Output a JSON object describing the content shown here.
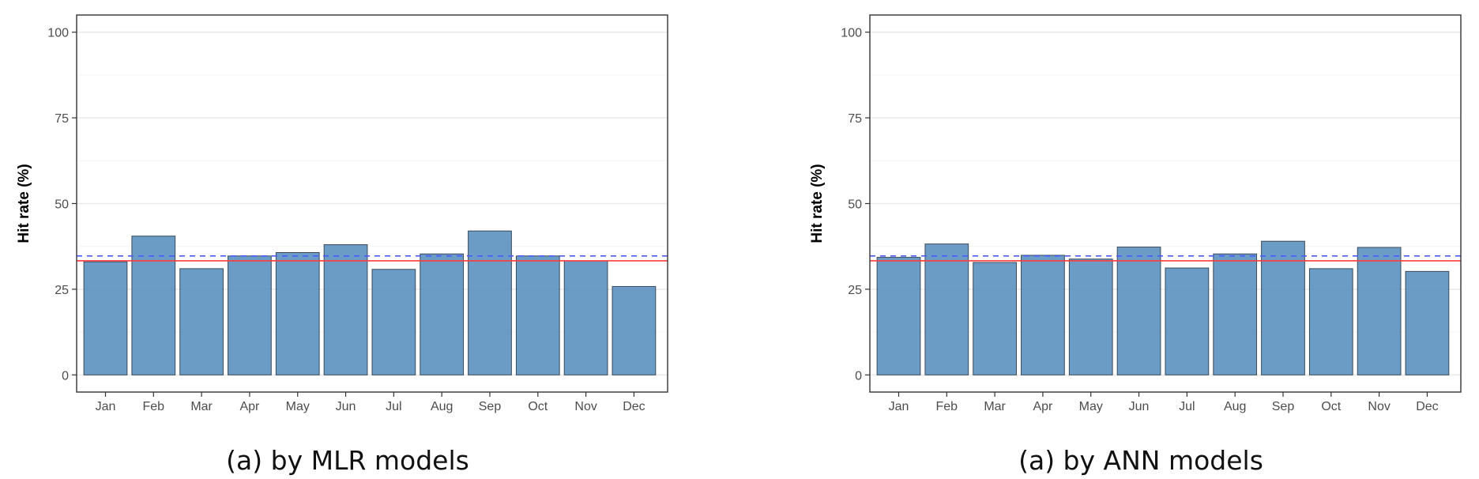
{
  "chart_data": [
    {
      "type": "bar",
      "caption": "(a) by MLR models",
      "ylabel": "Hit rate (%)",
      "categories": [
        "Jan",
        "Feb",
        "Mar",
        "Apr",
        "May",
        "Jun",
        "Jul",
        "Aug",
        "Sep",
        "Oct",
        "Nov",
        "Dec"
      ],
      "values": [
        33,
        40.5,
        31,
        34.7,
        35.7,
        38,
        30.8,
        35.3,
        42,
        34.7,
        33.3,
        25.8
      ],
      "ylim": [
        -5,
        105
      ],
      "yticks": [
        "0",
        "25",
        "50",
        "75",
        "100"
      ],
      "ytick_values": [
        0,
        25,
        50,
        75,
        100
      ],
      "reference_lines": [
        {
          "style": "solid",
          "color": "#ff3b3b",
          "value": 33.3
        },
        {
          "style": "dashed",
          "color": "#4b5bff",
          "value": 34.7
        }
      ],
      "bar_color": "#4a86b8",
      "grid": true
    },
    {
      "type": "bar",
      "caption": "(a) by ANN models",
      "ylabel": "Hit rate (%)",
      "categories": [
        "Jan",
        "Feb",
        "Mar",
        "Apr",
        "May",
        "Jun",
        "Jul",
        "Aug",
        "Sep",
        "Oct",
        "Nov",
        "Dec"
      ],
      "values": [
        34.3,
        38.2,
        32.8,
        34.9,
        33.8,
        37.3,
        31.2,
        35.3,
        39,
        31,
        37.2,
        30.2
      ],
      "ylim": [
        -5,
        105
      ],
      "yticks": [
        "0",
        "25",
        "50",
        "75",
        "100"
      ],
      "ytick_values": [
        0,
        25,
        50,
        75,
        100
      ],
      "reference_lines": [
        {
          "style": "solid",
          "color": "#ff3b3b",
          "value": 33.3
        },
        {
          "style": "dashed",
          "color": "#4b5bff",
          "value": 34.7
        }
      ],
      "bar_color": "#4a86b8",
      "grid": true
    }
  ]
}
